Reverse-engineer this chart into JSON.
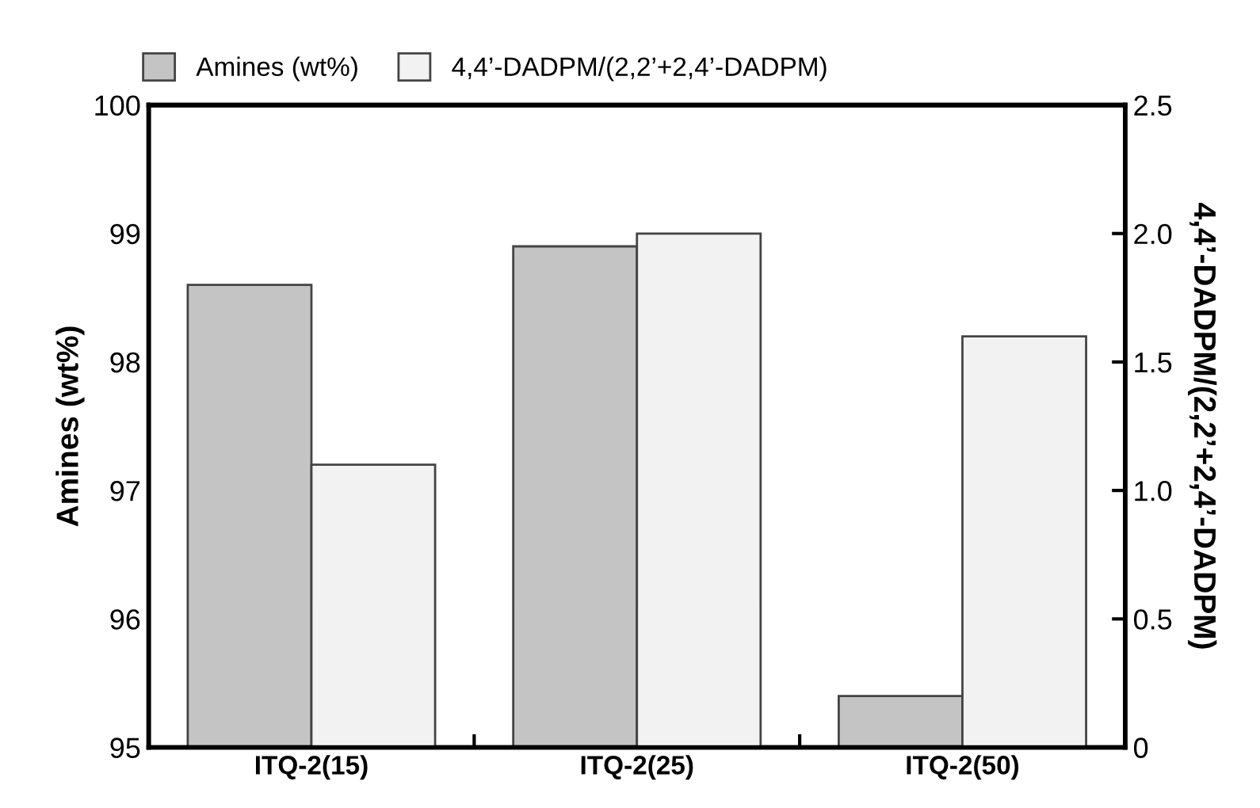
{
  "chart_data": {
    "type": "bar",
    "categories": [
      "ITQ-2(15)",
      "ITQ-2(25)",
      "ITQ-2(50)"
    ],
    "series": [
      {
        "name": "Amines (wt%)",
        "color": "#c4c4c4",
        "values": [
          98.6,
          98.9,
          95.4
        ]
      },
      {
        "name": "4,4’-DADPM/(2,2’+2,4’-DADPM)",
        "color": "#f2f2f2",
        "values": [
          1.1,
          2.0,
          1.6
        ],
        "axis": "y2"
      }
    ],
    "ylabel": "Amines (wt%)",
    "y2label": "4,4’-DADPM/(2,2’+2,4’-DADPM)",
    "ylim": [
      95,
      100
    ],
    "yticks": [
      95,
      96,
      97,
      98,
      99,
      100
    ],
    "y2lim": [
      0,
      2.5
    ],
    "y2ticks": [
      0,
      {
        "value": 0.5,
        "label": "0.5"
      },
      {
        "value": 1.0,
        "label": "1.0"
      },
      {
        "value": 1.5,
        "label": "1.5"
      },
      {
        "value": 2.0,
        "label": "2.0"
      },
      {
        "value": 2.5,
        "label": "2.5"
      }
    ],
    "legend": "top",
    "grid": false
  }
}
